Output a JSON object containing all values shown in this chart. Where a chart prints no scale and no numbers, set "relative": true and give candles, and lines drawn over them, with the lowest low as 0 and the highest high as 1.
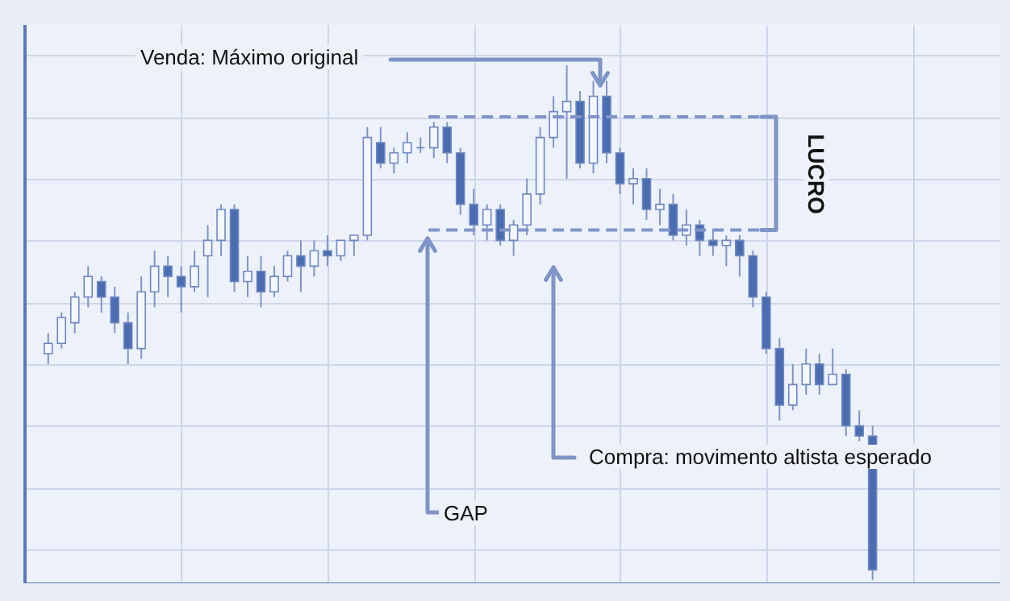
{
  "chart_data": {
    "type": "candlestick",
    "relative": true,
    "grid": true,
    "tick_labels": false,
    "categories": [
      null,
      null,
      null,
      null,
      null,
      null,
      null,
      null,
      null,
      null,
      null,
      null,
      null,
      null,
      null,
      null,
      null,
      null,
      null,
      null,
      null,
      null,
      null,
      null,
      null,
      null,
      null,
      null,
      null,
      null,
      null,
      null,
      null,
      null,
      null,
      null,
      null,
      null,
      null,
      null,
      null,
      null,
      null,
      null,
      null,
      null,
      null,
      null,
      null,
      null,
      null,
      null,
      null,
      null,
      null,
      null,
      null,
      null,
      null,
      null,
      null,
      null,
      null
    ],
    "ohlc": [
      [
        0.44,
        0.48,
        0.42,
        0.46
      ],
      [
        0.46,
        0.52,
        0.45,
        0.51
      ],
      [
        0.5,
        0.56,
        0.48,
        0.55
      ],
      [
        0.55,
        0.61,
        0.53,
        0.59
      ],
      [
        0.58,
        0.59,
        0.52,
        0.55
      ],
      [
        0.55,
        0.57,
        0.48,
        0.5
      ],
      [
        0.5,
        0.52,
        0.42,
        0.45
      ],
      [
        0.45,
        0.59,
        0.43,
        0.56
      ],
      [
        0.56,
        0.64,
        0.53,
        0.61
      ],
      [
        0.61,
        0.63,
        0.55,
        0.59
      ],
      [
        0.59,
        0.61,
        0.52,
        0.57
      ],
      [
        0.57,
        0.64,
        0.56,
        0.61
      ],
      [
        0.63,
        0.69,
        0.55,
        0.66
      ],
      [
        0.66,
        0.73,
        0.63,
        0.72
      ],
      [
        0.72,
        0.73,
        0.56,
        0.58
      ],
      [
        0.58,
        0.63,
        0.55,
        0.6
      ],
      [
        0.6,
        0.63,
        0.53,
        0.56
      ],
      [
        0.56,
        0.61,
        0.55,
        0.59
      ],
      [
        0.59,
        0.64,
        0.58,
        0.63
      ],
      [
        0.63,
        0.66,
        0.56,
        0.61
      ],
      [
        0.61,
        0.66,
        0.59,
        0.64
      ],
      [
        0.64,
        0.67,
        0.61,
        0.63
      ],
      [
        0.63,
        0.66,
        0.62,
        0.66
      ],
      [
        0.66,
        0.67,
        0.63,
        0.67
      ],
      [
        0.67,
        0.88,
        0.66,
        0.86
      ],
      [
        0.85,
        0.88,
        0.8,
        0.81
      ],
      [
        0.81,
        0.84,
        0.79,
        0.83
      ],
      [
        0.83,
        0.87,
        0.81,
        0.85
      ],
      [
        0.84,
        0.86,
        0.83,
        0.84
      ],
      [
        0.84,
        0.89,
        0.82,
        0.88
      ],
      [
        0.88,
        0.89,
        0.81,
        0.83
      ],
      [
        0.83,
        0.84,
        0.71,
        0.73
      ],
      [
        0.73,
        0.76,
        0.67,
        0.69
      ],
      [
        0.69,
        0.73,
        0.66,
        0.72
      ],
      [
        0.72,
        0.73,
        0.65,
        0.66
      ],
      [
        0.66,
        0.7,
        0.63,
        0.69
      ],
      [
        0.69,
        0.78,
        0.67,
        0.75
      ],
      [
        0.75,
        0.88,
        0.73,
        0.86
      ],
      [
        0.86,
        0.94,
        0.84,
        0.91
      ],
      [
        0.91,
        1.0,
        0.78,
        0.93
      ],
      [
        0.93,
        0.95,
        0.8,
        0.81
      ],
      [
        0.81,
        0.97,
        0.79,
        0.94
      ],
      [
        0.94,
        0.97,
        0.81,
        0.83
      ],
      [
        0.83,
        0.84,
        0.75,
        0.77
      ],
      [
        0.77,
        0.8,
        0.73,
        0.78
      ],
      [
        0.78,
        0.8,
        0.7,
        0.72
      ],
      [
        0.72,
        0.76,
        0.69,
        0.73
      ],
      [
        0.73,
        0.75,
        0.66,
        0.67
      ],
      [
        0.67,
        0.72,
        0.65,
        0.69
      ],
      [
        0.69,
        0.7,
        0.63,
        0.66
      ],
      [
        0.66,
        0.68,
        0.63,
        0.65
      ],
      [
        0.65,
        0.67,
        0.61,
        0.66
      ],
      [
        0.66,
        0.67,
        0.59,
        0.63
      ],
      [
        0.63,
        0.64,
        0.53,
        0.55
      ],
      [
        0.55,
        0.56,
        0.44,
        0.45
      ],
      [
        0.45,
        0.47,
        0.31,
        0.34
      ],
      [
        0.34,
        0.42,
        0.33,
        0.38
      ],
      [
        0.38,
        0.45,
        0.36,
        0.42
      ],
      [
        0.42,
        0.44,
        0.36,
        0.38
      ],
      [
        0.38,
        0.45,
        0.38,
        0.4
      ],
      [
        0.4,
        0.41,
        0.28,
        0.3
      ],
      [
        0.3,
        0.33,
        0.27,
        0.28
      ],
      [
        0.28,
        0.3,
        0,
        0.02
      ]
    ],
    "ref_lines": [
      {
        "axis": "y",
        "value": 0.9,
        "line_style": "dashed",
        "color": "#7f95c8"
      },
      {
        "axis": "y",
        "value": 0.68,
        "line_style": "dashed",
        "color": "#7f95c8"
      }
    ],
    "annotations": [
      "Venda: Máximo original",
      "LUCRO",
      "GAP",
      "Compra: movimento altista esperado"
    ]
  }
}
